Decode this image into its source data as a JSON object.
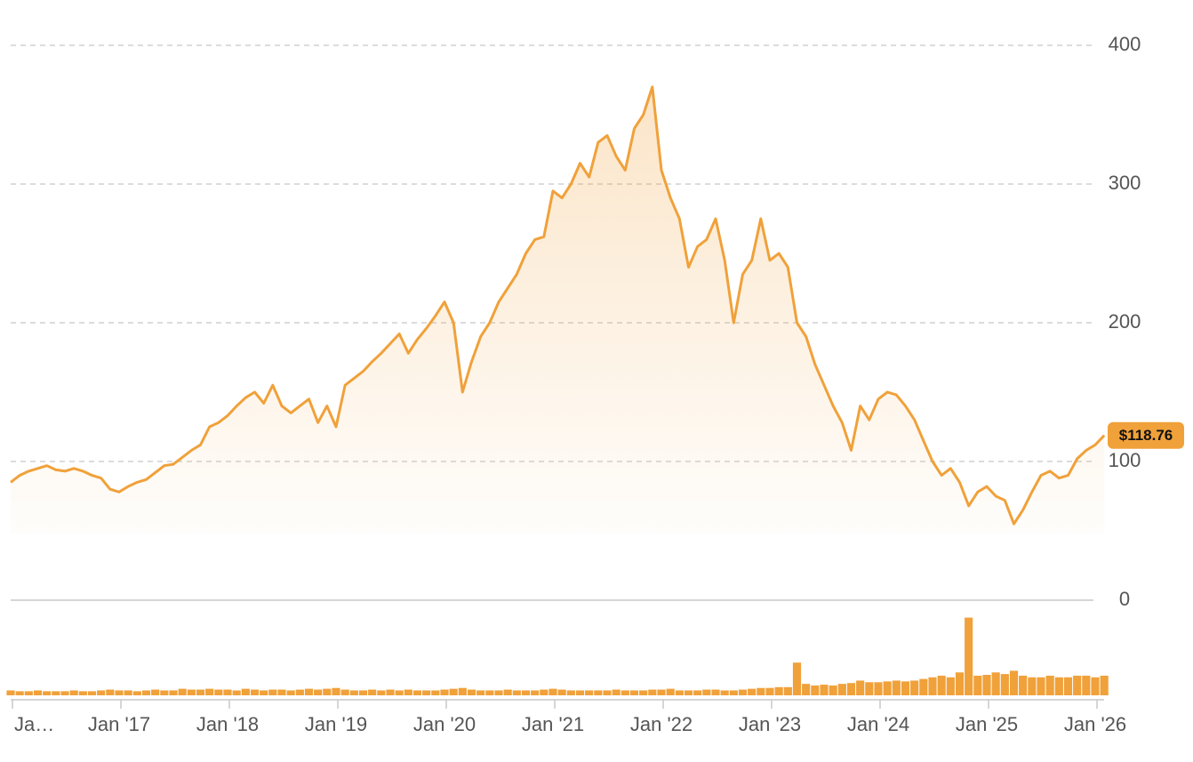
{
  "chart_data": {
    "type": "line",
    "categories": [
      "Ja…",
      null,
      null,
      null,
      null,
      null,
      null,
      null,
      null,
      null,
      null,
      null,
      "Jan '17",
      null,
      null,
      null,
      null,
      null,
      null,
      null,
      null,
      null,
      null,
      null,
      "Jan '18",
      null,
      null,
      null,
      null,
      null,
      null,
      null,
      null,
      null,
      null,
      null,
      "Jan '19",
      null,
      null,
      null,
      null,
      null,
      null,
      null,
      null,
      null,
      null,
      null,
      "Jan '20",
      null,
      null,
      null,
      null,
      null,
      null,
      null,
      null,
      null,
      null,
      null,
      "Jan '21",
      null,
      null,
      null,
      null,
      null,
      null,
      null,
      null,
      null,
      null,
      null,
      "Jan '22",
      null,
      null,
      null,
      null,
      null,
      null,
      null,
      null,
      null,
      null,
      null,
      "Jan '23",
      null,
      null,
      null,
      null,
      null,
      null,
      null,
      null,
      null,
      null,
      null,
      "Jan '24",
      null,
      null,
      null,
      null,
      null,
      null,
      null,
      null,
      null,
      null,
      null,
      "Jan '25",
      null,
      null,
      null,
      null,
      null,
      null,
      null,
      null,
      null,
      null,
      null,
      "Jan '26",
      null
    ],
    "series": [
      {
        "color": "#f0a13a",
        "values": [
          85,
          90,
          93,
          95,
          97,
          94,
          93,
          95,
          93,
          90,
          88,
          80,
          78,
          82,
          85,
          87,
          92,
          97,
          98,
          103,
          108,
          112,
          125,
          128,
          133,
          140,
          146,
          150,
          142,
          155,
          140,
          135,
          140,
          145,
          128,
          140,
          125,
          155,
          160,
          165,
          172,
          178,
          185,
          192,
          178,
          188,
          196,
          205,
          215,
          200,
          150,
          172,
          190,
          200,
          215,
          225,
          235,
          250,
          260,
          262,
          295,
          290,
          300,
          315,
          305,
          330,
          335,
          320,
          310,
          340,
          350,
          370,
          310,
          290,
          275,
          240,
          255,
          260,
          275,
          245,
          200,
          235,
          245,
          275,
          245,
          250,
          240,
          200,
          190,
          170,
          155,
          140,
          128,
          108,
          140,
          130,
          145,
          150,
          148,
          140,
          130,
          115,
          100,
          90,
          95,
          85,
          68,
          78,
          82,
          75,
          72,
          55,
          65,
          78,
          90,
          93,
          88,
          90,
          102,
          108,
          112,
          118.76
        ],
        "value_labels": [
          null,
          null,
          null,
          null,
          null,
          null,
          null,
          null,
          null,
          null,
          null,
          null,
          null,
          null,
          null,
          null,
          null,
          null,
          null,
          null,
          null,
          null,
          null,
          null,
          null,
          null,
          null,
          null,
          null,
          null,
          null,
          null,
          null,
          null,
          null,
          null,
          null,
          null,
          null,
          null,
          null,
          null,
          null,
          null,
          null,
          null,
          null,
          null,
          null,
          null,
          null,
          null,
          null,
          null,
          null,
          null,
          null,
          null,
          null,
          null,
          null,
          null,
          null,
          null,
          null,
          null,
          null,
          null,
          null,
          null,
          null,
          null,
          null,
          null,
          null,
          null,
          null,
          null,
          null,
          null,
          null,
          null,
          null,
          null,
          null,
          null,
          null,
          null,
          null,
          null,
          null,
          null,
          null,
          null,
          null,
          null,
          null,
          null,
          null,
          null,
          null,
          null,
          null,
          null,
          null,
          null,
          null,
          null,
          null,
          null,
          null,
          null,
          null,
          null,
          null,
          null,
          null,
          null,
          null,
          null,
          null,
          "$118.76"
        ]
      }
    ],
    "ylim": [
      0,
      400
    ],
    "yticks": [
      0,
      100,
      200,
      300,
      400
    ],
    "grid": true,
    "volume": {
      "color": "#f0a13a",
      "ylim": [
        0,
        100
      ],
      "values": [
        6,
        5,
        5,
        6,
        5,
        5,
        5,
        6,
        5,
        5,
        6,
        7,
        6,
        6,
        5,
        6,
        7,
        6,
        6,
        8,
        7,
        7,
        8,
        7,
        7,
        6,
        8,
        7,
        6,
        7,
        7,
        6,
        7,
        8,
        7,
        8,
        9,
        7,
        6,
        6,
        7,
        6,
        7,
        6,
        7,
        6,
        6,
        6,
        7,
        8,
        9,
        7,
        6,
        6,
        6,
        7,
        6,
        6,
        6,
        7,
        8,
        7,
        6,
        6,
        6,
        6,
        6,
        7,
        6,
        6,
        6,
        7,
        7,
        8,
        6,
        6,
        6,
        7,
        7,
        6,
        6,
        7,
        8,
        9,
        9,
        10,
        10,
        40,
        14,
        12,
        13,
        12,
        14,
        15,
        18,
        16,
        16,
        17,
        18,
        17,
        18,
        20,
        22,
        24,
        22,
        28,
        95,
        24,
        25,
        28,
        26,
        30,
        24,
        22,
        22,
        24,
        22,
        22,
        24,
        24,
        22,
        24
      ]
    }
  }
}
